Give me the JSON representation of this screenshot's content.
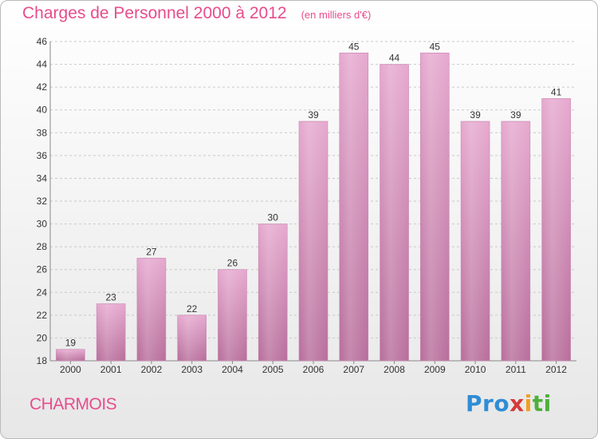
{
  "chart_data": {
    "type": "bar",
    "title": "Charges de Personnel 2000 à 2012",
    "subtitle": "(en milliers d'€)",
    "categories": [
      "2000",
      "2001",
      "2002",
      "2003",
      "2004",
      "2005",
      "2006",
      "2007",
      "2008",
      "2009",
      "2010",
      "2011",
      "2012"
    ],
    "values": [
      19,
      23,
      27,
      22,
      26,
      30,
      39,
      45,
      44,
      45,
      39,
      39,
      41
    ],
    "ylim": [
      18,
      46
    ],
    "yticks": [
      18,
      20,
      22,
      24,
      26,
      28,
      30,
      32,
      34,
      36,
      38,
      40,
      42,
      44,
      46
    ],
    "grid": true,
    "bar_color": "#d98fbd",
    "title_color": "#e74c8c"
  },
  "location": "CHARMOIS",
  "logo": {
    "parts": [
      "Pro",
      "x",
      "i",
      "ti"
    ]
  }
}
